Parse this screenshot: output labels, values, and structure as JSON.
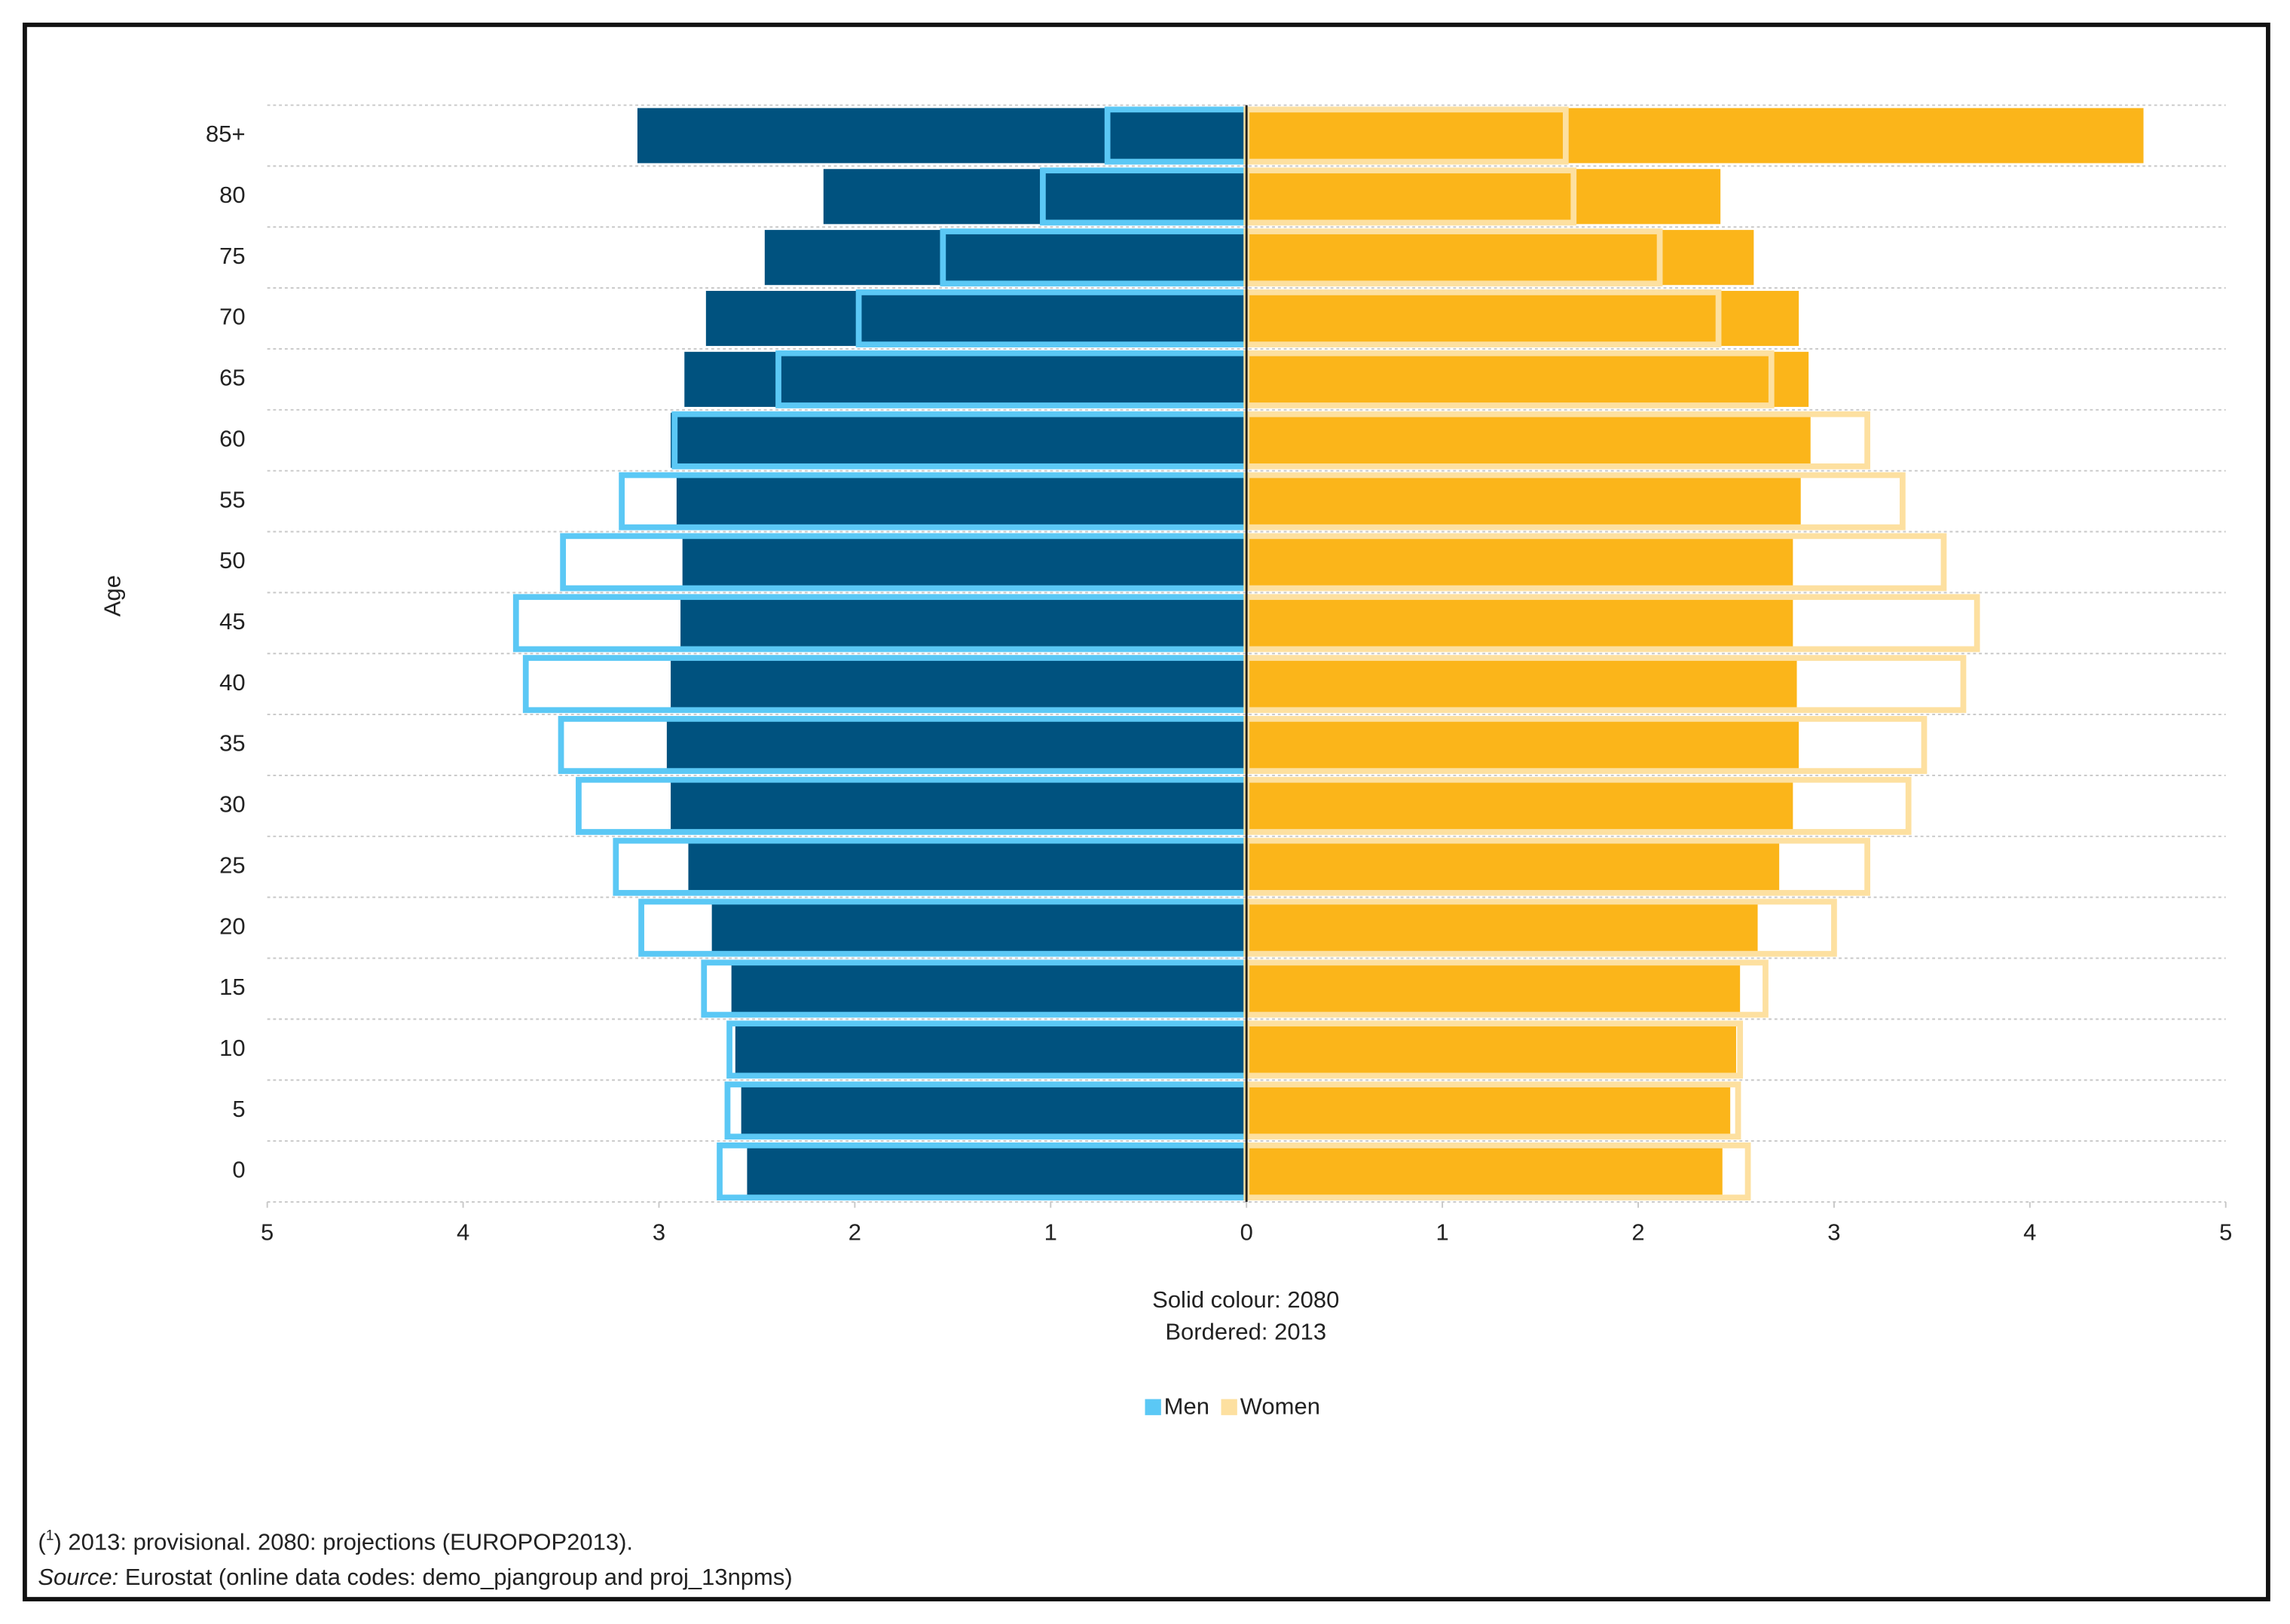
{
  "chart_data": {
    "type": "pyramid",
    "y_label": "Age",
    "categories": [
      "0",
      "5",
      "10",
      "15",
      "20",
      "25",
      "30",
      "35",
      "40",
      "45",
      "50",
      "55",
      "60",
      "65",
      "70",
      "75",
      "80",
      "85+"
    ],
    "series": [
      {
        "name": "Men",
        "solid_color": "#00527f",
        "border_color": "#5bc8f5",
        "solid": [
          -2.55,
          -2.58,
          -2.61,
          -2.63,
          -2.73,
          -2.85,
          -2.94,
          -2.96,
          -2.94,
          -2.89,
          -2.88,
          -2.91,
          -2.94,
          -2.87,
          -2.76,
          -2.46,
          -2.16,
          -3.11
        ],
        "bordered": [
          -2.69,
          -2.65,
          -2.64,
          -2.77,
          -3.09,
          -3.22,
          -3.41,
          -3.5,
          -3.68,
          -3.73,
          -3.49,
          -3.19,
          -2.92,
          -2.39,
          -1.98,
          -1.55,
          -1.04,
          -0.71
        ]
      },
      {
        "name": "Women",
        "solid_color": "#fbb51a",
        "border_color": "#fde0a0",
        "solid": [
          2.43,
          2.47,
          2.5,
          2.52,
          2.61,
          2.72,
          2.79,
          2.82,
          2.81,
          2.79,
          2.79,
          2.83,
          2.88,
          2.87,
          2.82,
          2.59,
          2.42,
          4.58
        ],
        "bordered": [
          2.56,
          2.51,
          2.52,
          2.65,
          3.0,
          3.17,
          3.38,
          3.46,
          3.66,
          3.73,
          3.56,
          3.35,
          3.17,
          2.68,
          2.41,
          2.11,
          1.67,
          1.63
        ]
      }
    ],
    "xlim": [
      -5,
      5
    ],
    "xticks": [
      {
        "value": -5,
        "label": "5"
      },
      {
        "value": -4,
        "label": "4"
      },
      {
        "value": -3,
        "label": "3"
      },
      {
        "value": -2,
        "label": "2"
      },
      {
        "value": -1,
        "label": "1"
      },
      0,
      1,
      2,
      3,
      4,
      5
    ],
    "notes": [
      "Solid colour: 2080",
      "Bordered: 2013"
    ],
    "footnote": [
      "(",
      "1",
      ") 2013: provisional. 2080: projections (EUROPOP2013)."
    ],
    "source": [
      "Source:",
      "Eurostat (online data codes: demo_pjangroup and proj_13npms)"
    ]
  }
}
